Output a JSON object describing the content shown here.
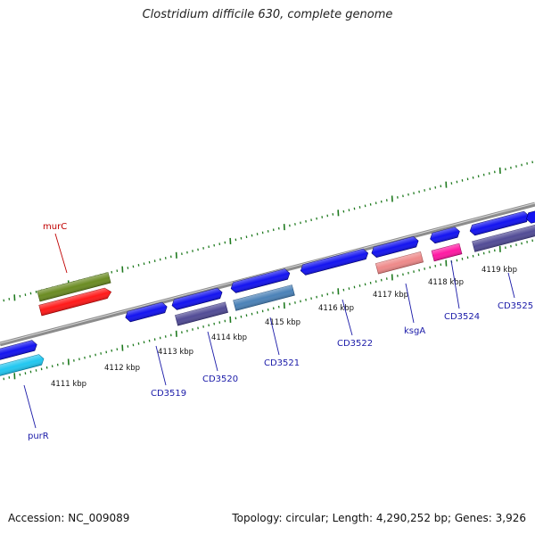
{
  "title": "Clostridium difficile 630, complete genome",
  "footer": {
    "accession": "Accession: NC_009089",
    "stats": "Topology: circular; Length: 4,290,252 bp; Genes: 3,926"
  },
  "colors": {
    "backbone": "#8c8c8c",
    "tick": "#1f7a1f",
    "label_blue": "#1a1aa8",
    "label_red": "#c00000"
  },
  "kbp_labels": [
    "4111 kbp",
    "4112 kbp",
    "4113 kbp",
    "4114 kbp",
    "4115 kbp",
    "4116 kbp",
    "4117 kbp",
    "4118 kbp",
    "4119 kbp"
  ],
  "genes": [
    {
      "name": "murC",
      "color": "#6b8c23"
    },
    {
      "name": "purR",
      "color": "#22c7f0"
    },
    {
      "name": "CD3519",
      "color": "#524c96"
    },
    {
      "name": "CD3520",
      "color": "#524c96"
    },
    {
      "name": "CD3521",
      "color": "#4b82b8"
    },
    {
      "name": "CD3522",
      "color": "#1414f0"
    },
    {
      "name": "ksgA",
      "color": "#ee8a8a"
    },
    {
      "name": "CD3524",
      "color": "#ff19a3"
    },
    {
      "name": "CD3525",
      "color": "#524c96"
    }
  ]
}
